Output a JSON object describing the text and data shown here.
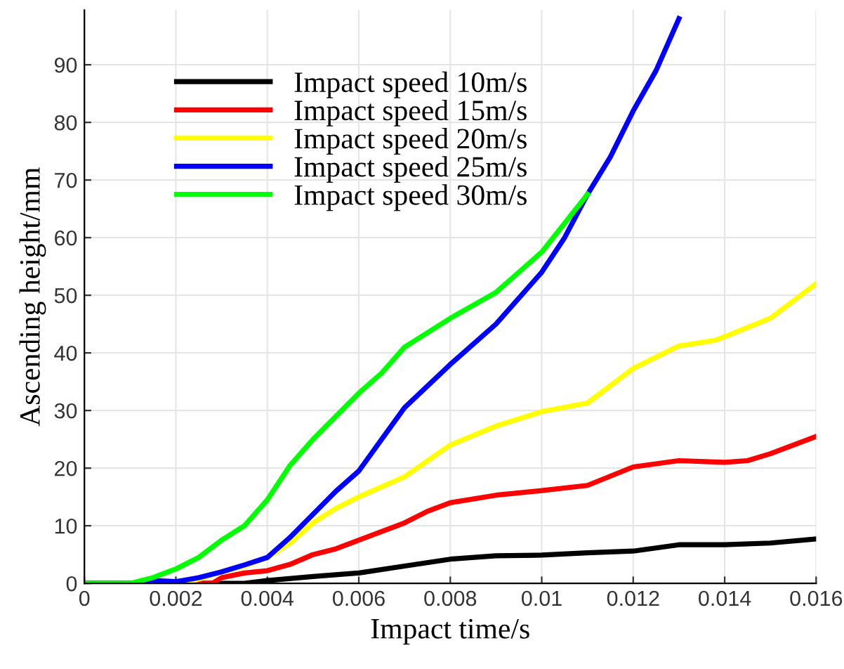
{
  "chart_data": {
    "type": "line",
    "xlabel": "Impact time/s",
    "ylabel": "Ascending height/mm",
    "xlim": [
      0,
      0.016
    ],
    "ylim": [
      0,
      99.5
    ],
    "xticks": [
      0,
      0.002,
      0.004,
      0.006,
      0.008,
      0.01,
      0.012,
      0.014,
      0.016
    ],
    "yticks": [
      0,
      10,
      20,
      30,
      40,
      50,
      60,
      70,
      80,
      90
    ],
    "grid": true,
    "legend": "top left",
    "line_style": "solid",
    "series": [
      {
        "name": "Impact speed 10m/s",
        "color": "#000000",
        "x": [
          0,
          0.0035,
          0.004,
          0.005,
          0.006,
          0.007,
          0.008,
          0.009,
          0.01,
          0.011,
          0.012,
          0.013,
          0.014,
          0.015,
          0.016
        ],
        "values": [
          0,
          0,
          0.5,
          1.2,
          1.8,
          3,
          4.2,
          4.8,
          4.9,
          5.3,
          5.6,
          6.7,
          6.7,
          7,
          7.7
        ]
      },
      {
        "name": "Impact speed 15m/s",
        "color": "#ff0000",
        "x": [
          0,
          0.0028,
          0.003,
          0.0035,
          0.004,
          0.0045,
          0.005,
          0.0055,
          0.006,
          0.007,
          0.0075,
          0.008,
          0.009,
          0.01,
          0.011,
          0.012,
          0.013,
          0.014,
          0.0145,
          0.015,
          0.016
        ],
        "values": [
          0,
          0,
          1,
          1.8,
          2.2,
          3.3,
          5,
          6,
          7.5,
          10.5,
          12.5,
          14,
          15.3,
          16.1,
          17,
          20.2,
          21.3,
          21,
          21.3,
          22.5,
          25.5
        ]
      },
      {
        "name": "Impact speed 20m/s",
        "color": "#ffff00",
        "x": [
          0,
          0.0022,
          0.003,
          0.0035,
          0.004,
          0.0045,
          0.005,
          0.0055,
          0.006,
          0.007,
          0.008,
          0.009,
          0.01,
          0.011,
          0.012,
          0.013,
          0.0138,
          0.014,
          0.015,
          0.016
        ],
        "values": [
          0,
          0,
          2,
          3,
          4.5,
          7,
          10.5,
          13,
          15,
          18.5,
          24,
          27.3,
          29.8,
          31.3,
          37.3,
          41.2,
          42.2,
          42.8,
          46,
          52
        ]
      },
      {
        "name": "Impact speed 25m/s",
        "color": "#0000ff",
        "x": [
          0,
          0.001,
          0.0015,
          0.002,
          0.0025,
          0.003,
          0.0035,
          0.004,
          0.0045,
          0.005,
          0.0055,
          0.006,
          0.0065,
          0.007,
          0.008,
          0.009,
          0.01,
          0.0105,
          0.011,
          0.0115,
          0.012,
          0.0125,
          0.013
        ],
        "values": [
          0,
          0,
          0.5,
          0.3,
          1,
          2,
          3.2,
          4.5,
          8,
          12,
          16,
          19.5,
          25,
          30.5,
          38,
          45,
          54,
          60,
          67.5,
          74,
          82,
          89,
          98
        ]
      },
      {
        "name": "Impact speed 30m/s",
        "color": "#00ff00",
        "x": [
          0,
          0.001,
          0.0015,
          0.002,
          0.0025,
          0.003,
          0.0035,
          0.004,
          0.0045,
          0.005,
          0.0055,
          0.006,
          0.0065,
          0.007,
          0.008,
          0.009,
          0.0095,
          0.01,
          0.0105,
          0.011
        ],
        "values": [
          0,
          0,
          1,
          2.5,
          4.5,
          7.5,
          10,
          14.5,
          20.5,
          25,
          29,
          33,
          36.5,
          41,
          46,
          50.5,
          54,
          57.5,
          62.5,
          67.5
        ]
      }
    ]
  }
}
